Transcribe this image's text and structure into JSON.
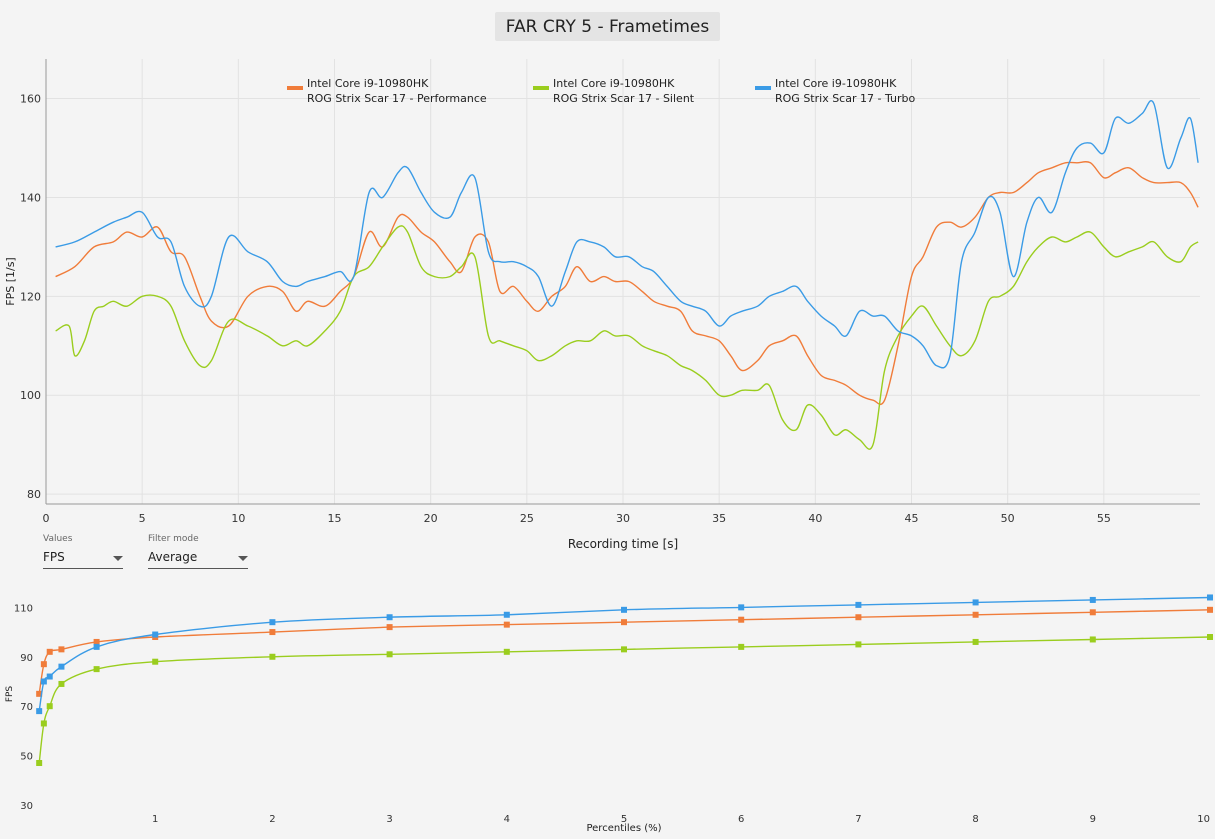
{
  "title": "FAR CRY 5 - Frametimes",
  "controls": {
    "values_caption": "Values",
    "values_selected": "FPS",
    "filter_caption": "Filter mode",
    "filter_selected": "Average"
  },
  "colors": {
    "performance": "#f07c3a",
    "silent": "#9acd1e",
    "turbo": "#3a9be6"
  },
  "chart_data": [
    {
      "type": "line",
      "xlabel": "Recording time [s]",
      "ylabel": "FPS [1/s]",
      "xlim": [
        0,
        60
      ],
      "ylim": [
        78,
        168
      ],
      "xticks": [
        0,
        5,
        10,
        15,
        20,
        25,
        30,
        35,
        40,
        45,
        50,
        55
      ],
      "yticks": [
        80,
        100,
        120,
        140,
        160
      ],
      "grid": true,
      "legend_position": "top",
      "series": [
        {
          "name": "Intel Core i9-10980HK ROG Strix Scar 17 - Performance",
          "legend_line1": "Intel Core i9-10980HK",
          "legend_line2": "ROG Strix Scar 17 - Performance",
          "color": "#f07c3a",
          "x": [
            0.5,
            1.5,
            2.5,
            3.5,
            4.2,
            5.0,
            5.8,
            6.5,
            7.2,
            8.0,
            8.6,
            9.5,
            10.5,
            11.5,
            12.3,
            13.0,
            13.6,
            14.5,
            15.3,
            16.0,
            16.8,
            17.5,
            18.3,
            18.8,
            19.5,
            20.2,
            21.0,
            21.6,
            22.3,
            23.0,
            23.6,
            24.3,
            25.0,
            25.6,
            26.3,
            27.0,
            27.6,
            28.3,
            29.0,
            29.6,
            30.3,
            31.0,
            31.6,
            32.3,
            33.0,
            33.6,
            34.3,
            35.0,
            35.6,
            36.2,
            37.0,
            37.6,
            38.3,
            39.0,
            39.6,
            40.3,
            41.0,
            41.6,
            42.3,
            43.0,
            43.6,
            44.3,
            45.0,
            45.6,
            46.3,
            47.0,
            47.6,
            48.3,
            49.0,
            49.6,
            50.3,
            51.0,
            51.6,
            52.3,
            53.0,
            53.6,
            54.3,
            55.0,
            55.6,
            56.3,
            57.0,
            57.6,
            58.3,
            59.0,
            59.5,
            59.9
          ],
          "y": [
            124,
            126,
            130,
            131,
            133,
            132,
            134,
            129,
            128,
            120,
            115,
            114,
            120,
            122,
            121,
            117,
            119,
            118,
            121,
            124,
            133,
            130,
            136,
            136,
            133,
            131,
            127,
            125,
            132,
            131,
            121,
            122,
            119,
            117,
            120,
            122,
            126,
            123,
            124,
            123,
            123,
            121,
            119,
            118,
            117,
            113,
            112,
            111,
            108,
            105,
            107,
            110,
            111,
            112,
            108,
            104,
            103,
            102,
            100,
            99,
            99,
            110,
            124,
            128,
            134,
            135,
            134,
            136,
            140,
            141,
            141,
            143,
            145,
            146,
            147,
            147,
            147,
            144,
            145,
            146,
            144,
            143,
            143,
            143,
            141,
            138
          ]
        },
        {
          "name": "Intel Core i9-10980HK ROG Strix Scar 17 - Silent",
          "legend_line1": "Intel Core i9-10980HK",
          "legend_line2": "ROG Strix Scar 17 - Silent",
          "color": "#9acd1e",
          "x": [
            0.5,
            1.2,
            1.5,
            2.0,
            2.5,
            3.0,
            3.5,
            4.2,
            5.0,
            5.8,
            6.5,
            7.2,
            8.0,
            8.6,
            9.5,
            10.5,
            11.5,
            12.3,
            13.0,
            13.6,
            14.5,
            15.3,
            16.0,
            16.8,
            17.5,
            18.3,
            18.8,
            19.5,
            20.2,
            21.0,
            21.6,
            22.3,
            23.0,
            23.6,
            24.3,
            25.0,
            25.6,
            26.3,
            27.0,
            27.6,
            28.3,
            29.0,
            29.6,
            30.3,
            31.0,
            31.6,
            32.3,
            33.0,
            33.6,
            34.3,
            35.0,
            35.6,
            36.2,
            37.0,
            37.6,
            38.3,
            39.0,
            39.6,
            40.3,
            41.0,
            41.6,
            42.3,
            43.0,
            43.6,
            44.3,
            45.0,
            45.6,
            46.3,
            47.0,
            47.6,
            48.3,
            49.0,
            49.6,
            50.3,
            51.0,
            51.6,
            52.3,
            53.0,
            53.6,
            54.3,
            55.0,
            55.6,
            56.3,
            57.0,
            57.6,
            58.3,
            59.0,
            59.5,
            59.9
          ],
          "y": [
            113,
            114,
            108,
            111,
            117,
            118,
            119,
            118,
            120,
            120,
            118,
            111,
            106,
            107,
            115,
            114,
            112,
            110,
            111,
            110,
            113,
            117,
            124,
            126,
            130,
            134,
            133,
            126,
            124,
            124,
            126,
            128,
            112,
            111,
            110,
            109,
            107,
            108,
            110,
            111,
            111,
            113,
            112,
            112,
            110,
            109,
            108,
            106,
            105,
            103,
            100,
            100,
            101,
            101,
            102,
            95,
            93,
            98,
            96,
            92,
            93,
            91,
            90,
            105,
            112,
            116,
            118,
            114,
            110,
            108,
            111,
            119,
            120,
            122,
            127,
            130,
            132,
            131,
            132,
            133,
            130,
            128,
            129,
            130,
            131,
            128,
            127,
            130,
            131
          ]
        },
        {
          "name": "Intel Core i9-10980HK ROG Strix Scar 17 - Turbo",
          "legend_line1": "Intel Core i9-10980HK",
          "legend_line2": "ROG Strix Scar 17 - Turbo",
          "color": "#3a9be6",
          "x": [
            0.5,
            1.5,
            2.5,
            3.5,
            4.2,
            5.0,
            5.8,
            6.5,
            7.2,
            8.0,
            8.6,
            9.5,
            10.5,
            11.5,
            12.3,
            13.0,
            13.6,
            14.5,
            15.3,
            16.0,
            16.8,
            17.5,
            18.3,
            18.8,
            19.5,
            20.2,
            21.0,
            21.6,
            22.3,
            23.0,
            23.6,
            24.3,
            25.0,
            25.6,
            26.3,
            27.0,
            27.6,
            28.3,
            29.0,
            29.6,
            30.3,
            31.0,
            31.6,
            32.3,
            33.0,
            33.6,
            34.3,
            35.0,
            35.6,
            36.2,
            37.0,
            37.6,
            38.3,
            39.0,
            39.6,
            40.3,
            41.0,
            41.6,
            42.3,
            43.0,
            43.6,
            44.3,
            45.0,
            45.6,
            46.3,
            47.0,
            47.6,
            48.3,
            49.0,
            49.6,
            50.3,
            51.0,
            51.6,
            52.3,
            53.0,
            53.6,
            54.3,
            55.0,
            55.6,
            56.3,
            57.0,
            57.6,
            58.3,
            59.0,
            59.5,
            59.9
          ],
          "y": [
            130,
            131,
            133,
            135,
            136,
            137,
            132,
            131,
            122,
            118,
            120,
            132,
            129,
            127,
            123,
            122,
            123,
            124,
            125,
            124,
            141,
            140,
            145,
            146,
            141,
            137,
            136,
            141,
            144,
            129,
            127,
            127,
            126,
            124,
            118,
            125,
            131,
            131,
            130,
            128,
            128,
            126,
            125,
            122,
            119,
            118,
            117,
            114,
            116,
            117,
            118,
            120,
            121,
            122,
            119,
            116,
            114,
            112,
            117,
            116,
            116,
            113,
            112,
            110,
            106,
            108,
            127,
            133,
            140,
            137,
            124,
            135,
            140,
            137,
            145,
            150,
            151,
            149,
            156,
            155,
            157,
            159,
            146,
            152,
            156,
            147
          ]
        }
      ]
    },
    {
      "type": "line",
      "xlabel": "Percentiles (%)",
      "ylabel": "FPS",
      "xlim": [
        0,
        10
      ],
      "ylim": [
        30,
        115
      ],
      "xticks": [
        1,
        2,
        3,
        4,
        5,
        6,
        7,
        8,
        9,
        10
      ],
      "yticks": [
        30,
        50,
        70,
        90,
        110
      ],
      "grid": false,
      "series": [
        {
          "name": "Performance",
          "color": "#f07c3a",
          "x": [
            0.01,
            0.05,
            0.1,
            0.2,
            0.5,
            1,
            2,
            3,
            4,
            5,
            6,
            7,
            8,
            9,
            10
          ],
          "y": [
            75,
            87,
            92,
            93,
            96,
            98,
            100,
            102,
            103,
            104,
            105,
            106,
            107,
            108,
            109
          ]
        },
        {
          "name": "Silent",
          "color": "#9acd1e",
          "x": [
            0.01,
            0.05,
            0.1,
            0.2,
            0.5,
            1,
            2,
            3,
            4,
            5,
            6,
            7,
            8,
            9,
            10
          ],
          "y": [
            47,
            63,
            70,
            79,
            85,
            88,
            90,
            91,
            92,
            93,
            94,
            95,
            96,
            97,
            98
          ]
        },
        {
          "name": "Turbo",
          "color": "#3a9be6",
          "x": [
            0.01,
            0.05,
            0.1,
            0.2,
            0.5,
            1,
            2,
            3,
            4,
            5,
            6,
            7,
            8,
            9,
            10
          ],
          "y": [
            68,
            80,
            82,
            86,
            94,
            99,
            104,
            106,
            107,
            109,
            110,
            111,
            112,
            113,
            114
          ]
        }
      ]
    }
  ]
}
